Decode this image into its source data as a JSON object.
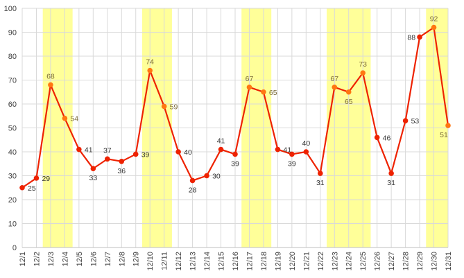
{
  "chart_data": {
    "type": "line",
    "title": "",
    "xlabel": "",
    "ylabel": "",
    "categories": [
      "12/1",
      "12/2",
      "12/3",
      "12/4",
      "12/5",
      "12/6",
      "12/7",
      "12/8",
      "12/9",
      "12/10",
      "12/11",
      "12/12",
      "12/13",
      "12/14",
      "12/15",
      "12/16",
      "12/17",
      "12/18",
      "12/19",
      "12/20",
      "12/21",
      "12/22",
      "12/23",
      "12/24",
      "12/25",
      "12/26",
      "12/27",
      "12/28",
      "12/29",
      "12/30",
      "12/31"
    ],
    "series": [
      {
        "values": [
          25,
          29,
          68,
          54,
          41,
          33,
          37,
          36,
          39,
          74,
          59,
          40,
          28,
          30,
          41,
          39,
          67,
          65,
          41,
          39,
          40,
          31,
          67,
          65,
          73,
          46,
          31,
          53,
          88,
          92,
          51
        ]
      }
    ],
    "ylim": [
      0,
      100
    ],
    "yticks": [
      0,
      10,
      20,
      30,
      40,
      50,
      60,
      70,
      80,
      90,
      100
    ],
    "grid": true,
    "legend": "none",
    "highlight_bands": [
      {
        "from": "12/3",
        "to": "12/4"
      },
      {
        "from": "12/10",
        "to": "12/11"
      },
      {
        "from": "12/17",
        "to": "12/18"
      },
      {
        "from": "12/23",
        "to": "12/25"
      },
      {
        "from": "12/30",
        "to": "12/31"
      }
    ],
    "colors": {
      "line": "#ee2200",
      "marker_highlight": "#ff7711",
      "band": "#ffff99",
      "grid": "#d9d9d9",
      "axis": "#bfbfbf"
    }
  }
}
